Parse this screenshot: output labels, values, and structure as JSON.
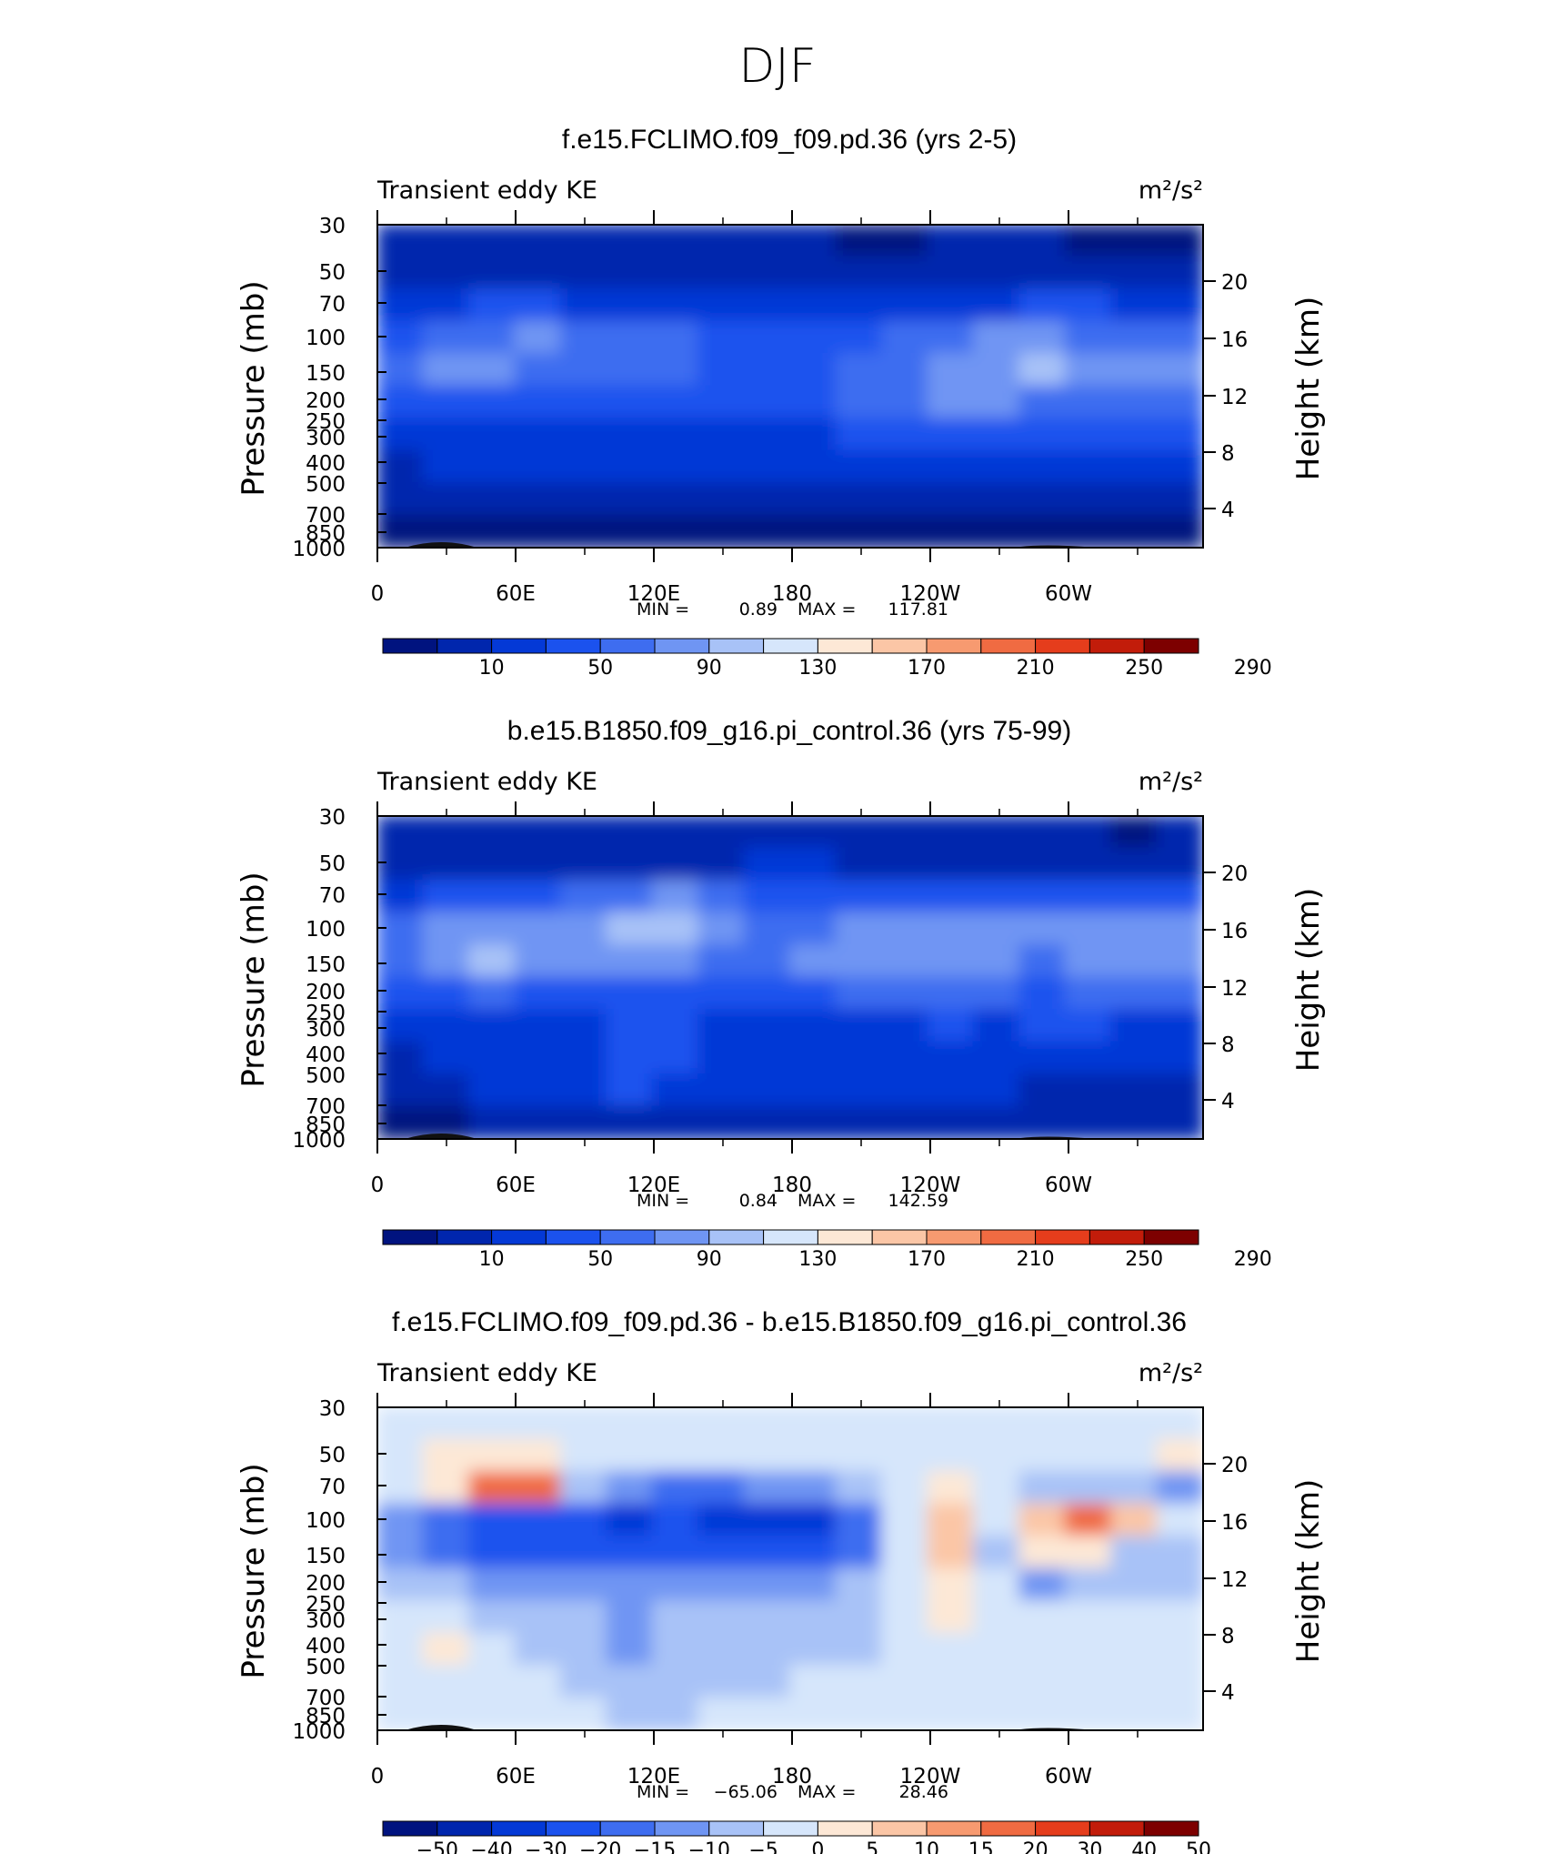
{
  "figure": {
    "season": "DJF"
  },
  "palettes": {
    "abs": [
      "#00137f",
      "#0026ad",
      "#0439d6",
      "#1b52ee",
      "#3e6df0",
      "#6f95f3",
      "#a8c2f7",
      "#d6e6fb",
      "#fde8d6",
      "#fbc6a6",
      "#f79a70",
      "#f06b42",
      "#e53d1c",
      "#c21c0a",
      "#7d0000"
    ],
    "diff": [
      "#00137f",
      "#0026ad",
      "#0439d6",
      "#1b52ee",
      "#3e6df0",
      "#6f95f3",
      "#a8c2f7",
      "#d6e6fb",
      "#fde8d6",
      "#fbc6a6",
      "#f79a70",
      "#f06b42",
      "#e53d1c",
      "#c21c0a",
      "#7d0000"
    ],
    "terrain": "#111111"
  },
  "chart_data": [
    {
      "type": "heatmap",
      "title": "f.e15.FCLIMO.f09_f09.pd.36 (yrs 2-5)",
      "left_label": "Transient eddy KE",
      "right_label": "m²/s²",
      "ylabel": "Pressure (mb)",
      "ylabel_right": "Height (km)",
      "xticks": [
        "0",
        "60E",
        "120E",
        "180",
        "120W",
        "60W"
      ],
      "yticks": [
        "30",
        "50",
        "70",
        "100",
        "150",
        "200",
        "250",
        "300",
        "400",
        "500",
        "700",
        "850",
        "1000"
      ],
      "yticks_right": [
        "20",
        "16",
        "12",
        "8",
        "4"
      ],
      "stats": {
        "min_label": "MIN =",
        "min": "0.89",
        "max_label": "MAX =",
        "max": "117.81"
      },
      "colorbar": {
        "labels": [
          "10",
          "50",
          "90",
          "130",
          "170",
          "210",
          "250",
          "290"
        ],
        "levels": [
          10,
          30,
          50,
          70,
          90,
          110,
          130,
          150,
          170,
          190,
          210,
          230,
          250,
          270,
          290
        ]
      },
      "palette": "abs",
      "field": [
        [
          1,
          1,
          1,
          1,
          1,
          1,
          1,
          1,
          1,
          1,
          0,
          0,
          1,
          1,
          1,
          0,
          0,
          0
        ],
        [
          1,
          1,
          1,
          1,
          1,
          1,
          1,
          1,
          1,
          1,
          1,
          1,
          1,
          1,
          1,
          1,
          1,
          1
        ],
        [
          2,
          2,
          3,
          3,
          2,
          2,
          2,
          2,
          2,
          2,
          2,
          2,
          2,
          2,
          3,
          3,
          2,
          2
        ],
        [
          3,
          4,
          4,
          5,
          4,
          4,
          4,
          3,
          3,
          3,
          3,
          4,
          4,
          5,
          5,
          4,
          4,
          4
        ],
        [
          4,
          5,
          5,
          4,
          4,
          4,
          4,
          3,
          3,
          3,
          4,
          4,
          5,
          5,
          6,
          5,
          5,
          5
        ],
        [
          3,
          3,
          3,
          3,
          3,
          3,
          3,
          3,
          3,
          3,
          4,
          4,
          5,
          5,
          4,
          4,
          4,
          4
        ],
        [
          2,
          2,
          2,
          2,
          2,
          2,
          2,
          2,
          2,
          2,
          3,
          3,
          3,
          3,
          3,
          3,
          3,
          3
        ],
        [
          1,
          2,
          2,
          2,
          2,
          2,
          2,
          2,
          2,
          2,
          2,
          2,
          2,
          2,
          2,
          2,
          2,
          2
        ],
        [
          1,
          1,
          1,
          1,
          1,
          1,
          1,
          1,
          1,
          1,
          1,
          1,
          1,
          1,
          1,
          1,
          1,
          1
        ],
        [
          0,
          0,
          0,
          0,
          0,
          0,
          0,
          0,
          0,
          0,
          0,
          0,
          0,
          0,
          0,
          0,
          0,
          0
        ]
      ]
    },
    {
      "type": "heatmap",
      "title": "b.e15.B1850.f09_g16.pi_control.36 (yrs 75-99)",
      "left_label": "Transient eddy KE",
      "right_label": "m²/s²",
      "ylabel": "Pressure (mb)",
      "ylabel_right": "Height (km)",
      "xticks": [
        "0",
        "60E",
        "120E",
        "180",
        "120W",
        "60W"
      ],
      "yticks": [
        "30",
        "50",
        "70",
        "100",
        "150",
        "200",
        "250",
        "300",
        "400",
        "500",
        "700",
        "850",
        "1000"
      ],
      "yticks_right": [
        "20",
        "16",
        "12",
        "8",
        "4"
      ],
      "stats": {
        "min_label": "MIN =",
        "min": "0.84",
        "max_label": "MAX =",
        "max": "142.59"
      },
      "colorbar": {
        "labels": [
          "10",
          "50",
          "90",
          "130",
          "170",
          "210",
          "250",
          "290"
        ],
        "levels": [
          10,
          30,
          50,
          70,
          90,
          110,
          130,
          150,
          170,
          190,
          210,
          230,
          250,
          270,
          290
        ]
      },
      "palette": "abs",
      "field": [
        [
          1,
          1,
          1,
          1,
          1,
          1,
          1,
          1,
          1,
          1,
          1,
          1,
          1,
          1,
          1,
          1,
          0,
          1
        ],
        [
          1,
          1,
          1,
          1,
          1,
          1,
          1,
          1,
          2,
          2,
          1,
          1,
          1,
          1,
          1,
          1,
          1,
          1
        ],
        [
          2,
          3,
          3,
          3,
          4,
          4,
          5,
          4,
          3,
          3,
          3,
          3,
          3,
          3,
          3,
          3,
          3,
          3
        ],
        [
          4,
          5,
          5,
          5,
          5,
          6,
          6,
          5,
          4,
          4,
          5,
          5,
          5,
          5,
          5,
          5,
          5,
          5
        ],
        [
          4,
          5,
          6,
          5,
          5,
          5,
          5,
          4,
          4,
          5,
          5,
          5,
          5,
          5,
          4,
          5,
          5,
          5
        ],
        [
          3,
          3,
          4,
          3,
          3,
          3,
          3,
          3,
          3,
          3,
          4,
          4,
          4,
          4,
          3,
          4,
          4,
          4
        ],
        [
          2,
          2,
          2,
          2,
          2,
          3,
          3,
          2,
          2,
          2,
          2,
          2,
          3,
          2,
          3,
          3,
          2,
          2
        ],
        [
          1,
          2,
          2,
          2,
          2,
          3,
          3,
          2,
          2,
          2,
          2,
          2,
          2,
          2,
          2,
          2,
          2,
          2
        ],
        [
          1,
          1,
          2,
          2,
          2,
          3,
          2,
          2,
          2,
          2,
          2,
          2,
          2,
          2,
          1,
          1,
          1,
          1
        ],
        [
          0,
          0,
          1,
          1,
          1,
          1,
          1,
          1,
          1,
          1,
          1,
          1,
          1,
          1,
          1,
          1,
          1,
          1
        ]
      ]
    },
    {
      "type": "heatmap",
      "title": "f.e15.FCLIMO.f09_f09.pd.36 - b.e15.B1850.f09_g16.pi_control.36",
      "left_label": "Transient eddy KE",
      "right_label": "m²/s²",
      "ylabel": "Pressure (mb)",
      "ylabel_right": "Height (km)",
      "xticks": [
        "0",
        "60E",
        "120E",
        "180",
        "120W",
        "60W"
      ],
      "yticks": [
        "30",
        "50",
        "70",
        "100",
        "150",
        "200",
        "250",
        "300",
        "400",
        "500",
        "700",
        "850",
        "1000"
      ],
      "yticks_right": [
        "20",
        "16",
        "12",
        "8",
        "4"
      ],
      "stats": {
        "min_label": "MIN =",
        "min": "−65.06",
        "max_label": "MAX =",
        "max": "28.46"
      },
      "colorbar": {
        "labels": [
          "−50",
          "−40",
          "−30",
          "−20",
          "−15",
          "−10",
          "−5",
          "0",
          "5",
          "10",
          "15",
          "20",
          "30",
          "40",
          "50"
        ],
        "levels": [
          -50,
          -40,
          -30,
          -20,
          -15,
          -10,
          -5,
          0,
          5,
          10,
          15,
          20,
          30,
          40,
          50
        ]
      },
      "palette": "diff",
      "field": [
        [
          7,
          7,
          7,
          7,
          7,
          7,
          7,
          7,
          7,
          7,
          7,
          7,
          7,
          7,
          7,
          7,
          7,
          7
        ],
        [
          7,
          8,
          8,
          8,
          7,
          7,
          7,
          7,
          7,
          7,
          7,
          7,
          7,
          7,
          7,
          7,
          7,
          8
        ],
        [
          7,
          8,
          11,
          11,
          6,
          5,
          4,
          4,
          5,
          5,
          6,
          7,
          8,
          7,
          6,
          6,
          6,
          5
        ],
        [
          5,
          4,
          3,
          3,
          3,
          2,
          3,
          2,
          2,
          2,
          4,
          7,
          9,
          7,
          9,
          11,
          9,
          7
        ],
        [
          5,
          4,
          3,
          3,
          3,
          3,
          3,
          3,
          3,
          3,
          4,
          7,
          9,
          6,
          8,
          8,
          6,
          6
        ],
        [
          6,
          6,
          5,
          5,
          5,
          5,
          5,
          5,
          5,
          5,
          6,
          7,
          8,
          7,
          5,
          6,
          6,
          6
        ],
        [
          7,
          7,
          6,
          6,
          6,
          5,
          6,
          6,
          6,
          6,
          6,
          7,
          8,
          7,
          7,
          7,
          7,
          7
        ],
        [
          7,
          8,
          7,
          6,
          6,
          5,
          6,
          6,
          6,
          6,
          6,
          7,
          7,
          7,
          7,
          7,
          7,
          7
        ],
        [
          7,
          7,
          7,
          7,
          6,
          6,
          6,
          6,
          6,
          7,
          7,
          7,
          7,
          7,
          7,
          7,
          7,
          7
        ],
        [
          7,
          7,
          7,
          7,
          7,
          6,
          6,
          7,
          7,
          7,
          7,
          7,
          7,
          7,
          7,
          7,
          7,
          7
        ]
      ]
    }
  ]
}
